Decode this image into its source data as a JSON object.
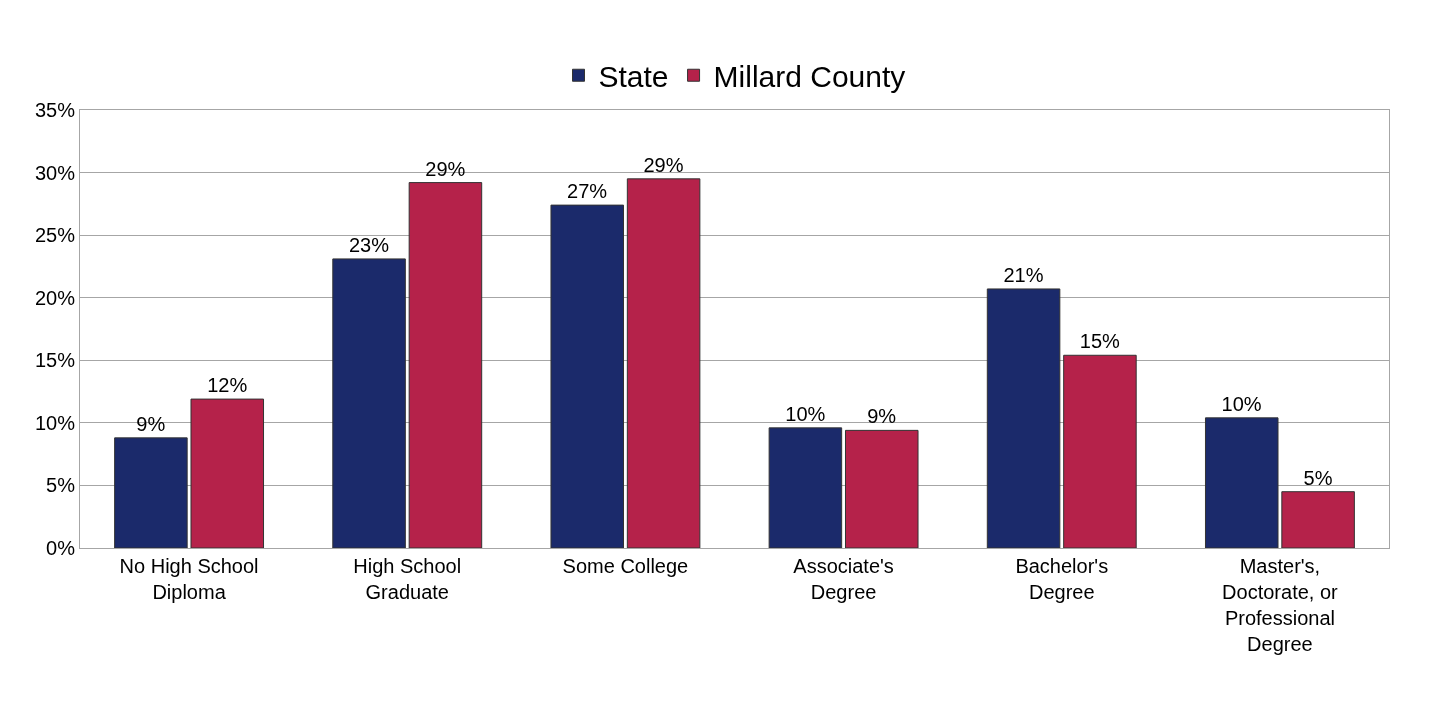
{
  "chart_data": {
    "type": "bar",
    "categories": [
      "No High School Diploma",
      "High School Graduate",
      "Some College",
      "Associate's Degree",
      "Bachelor's Degree",
      "Master's, Doctorate, or Professional Degree"
    ],
    "series": [
      {
        "name": "State",
        "color": "#1b2a6b",
        "values": [
          8.8,
          23.1,
          27.4,
          9.6,
          20.7,
          10.4
        ],
        "value_labels": [
          "9%",
          "23%",
          "27%",
          "10%",
          "21%",
          "10%"
        ]
      },
      {
        "name": "Millard County",
        "color": "#b5224a",
        "values": [
          11.9,
          29.2,
          29.5,
          9.4,
          15.4,
          4.5
        ],
        "value_labels": [
          "12%",
          "29%",
          "29%",
          "9%",
          "15%",
          "5%"
        ]
      }
    ],
    "ylim": [
      0,
      35
    ],
    "yticks": [
      {
        "value": 0,
        "label": "0%"
      },
      {
        "value": 5,
        "label": "5%"
      },
      {
        "value": 10,
        "label": "10%"
      },
      {
        "value": 15,
        "label": "15%"
      },
      {
        "value": 20,
        "label": "20%"
      },
      {
        "value": 25,
        "label": "25%"
      },
      {
        "value": 30,
        "label": "30%"
      },
      {
        "value": 35,
        "label": "35%"
      }
    ],
    "grid": "y",
    "legend": "top"
  }
}
